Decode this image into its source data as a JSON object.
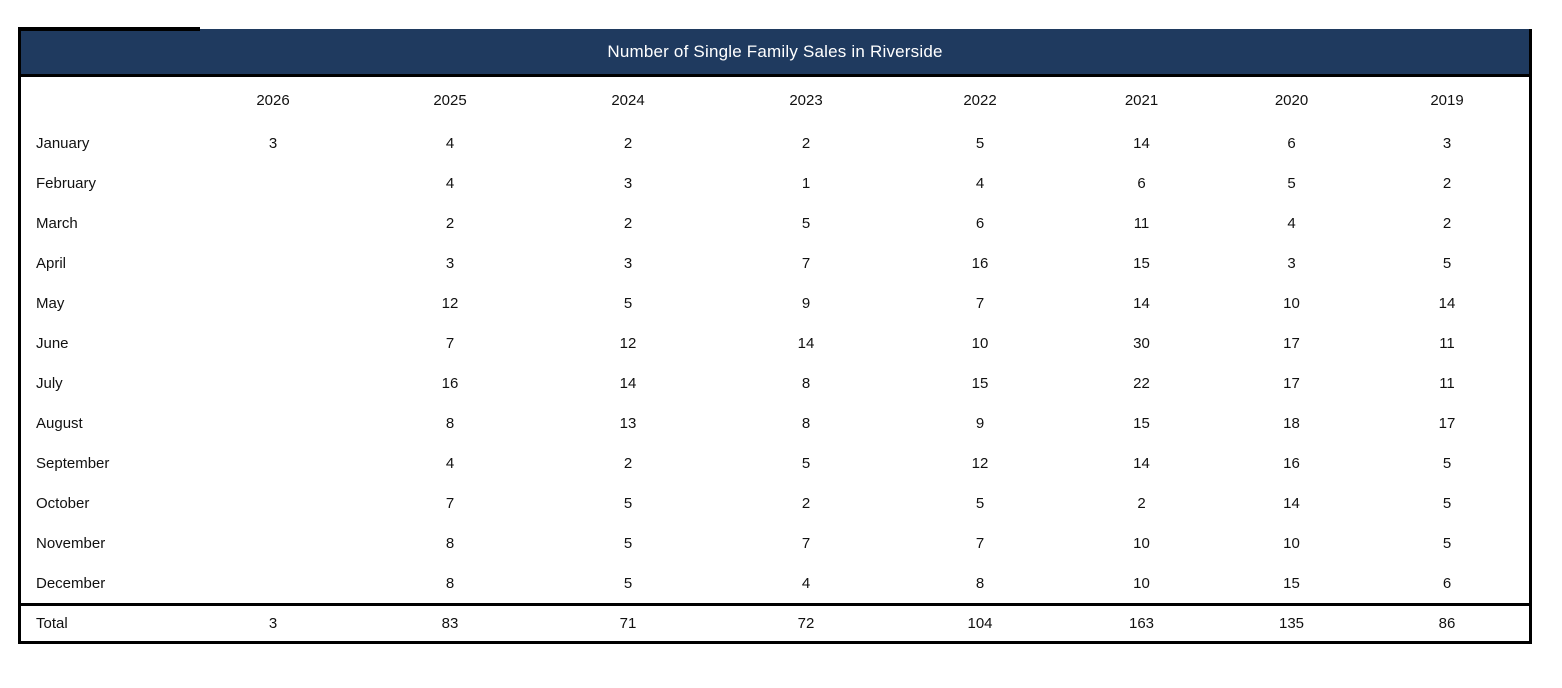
{
  "colors": {
    "header_bg": "#1F3A5F",
    "header_text": "#FFFFFF",
    "border": "#000000",
    "body_text": "#111111"
  },
  "chart_data": {
    "type": "table",
    "title": "Number of Single Family Sales in Riverside",
    "columns": [
      "2026",
      "2025",
      "2024",
      "2023",
      "2022",
      "2021",
      "2020",
      "2019"
    ],
    "row_label_header": "",
    "rows": [
      {
        "label": "January",
        "values": [
          "3",
          "4",
          "2",
          "2",
          "5",
          "14",
          "6",
          "3"
        ]
      },
      {
        "label": "February",
        "values": [
          "",
          "4",
          "3",
          "1",
          "4",
          "6",
          "5",
          "2"
        ]
      },
      {
        "label": "March",
        "values": [
          "",
          "2",
          "2",
          "5",
          "6",
          "11",
          "4",
          "2"
        ]
      },
      {
        "label": "April",
        "values": [
          "",
          "3",
          "3",
          "7",
          "16",
          "15",
          "3",
          "5"
        ]
      },
      {
        "label": "May",
        "values": [
          "",
          "12",
          "5",
          "9",
          "7",
          "14",
          "10",
          "14"
        ]
      },
      {
        "label": "June",
        "values": [
          "",
          "7",
          "12",
          "14",
          "10",
          "30",
          "17",
          "11"
        ]
      },
      {
        "label": "July",
        "values": [
          "",
          "16",
          "14",
          "8",
          "15",
          "22",
          "17",
          "11"
        ]
      },
      {
        "label": "August",
        "values": [
          "",
          "8",
          "13",
          "8",
          "9",
          "15",
          "18",
          "17"
        ]
      },
      {
        "label": "September",
        "values": [
          "",
          "4",
          "2",
          "5",
          "12",
          "14",
          "16",
          "5"
        ]
      },
      {
        "label": "October",
        "values": [
          "",
          "7",
          "5",
          "2",
          "5",
          "2",
          "14",
          "5"
        ]
      },
      {
        "label": "November",
        "values": [
          "",
          "8",
          "5",
          "7",
          "7",
          "10",
          "10",
          "5"
        ]
      },
      {
        "label": "December",
        "values": [
          "",
          "8",
          "5",
          "4",
          "8",
          "10",
          "15",
          "6"
        ]
      }
    ],
    "total_row": {
      "label": "Total",
      "values": [
        "3",
        "83",
        "71",
        "72",
        "104",
        "163",
        "135",
        "86"
      ]
    }
  }
}
